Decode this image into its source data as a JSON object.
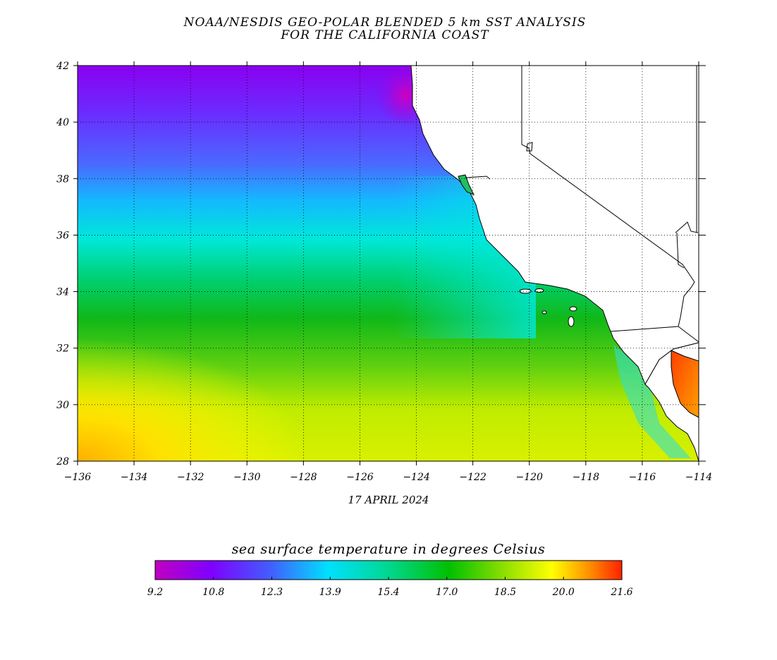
{
  "title_line1": "NOAA/NESDIS GEO-POLAR BLENDED 5 km SST ANALYSIS",
  "title_line2": "FOR THE CALIFORNIA COAST",
  "date": "17 APRIL 2024",
  "map": {
    "lon_range": [
      -136,
      -114
    ],
    "lat_range": [
      28,
      42
    ],
    "lon_ticks": [
      "-136",
      "-134",
      "-132",
      "-130",
      "-128",
      "-126",
      "-124",
      "-122",
      "-120",
      "-118",
      "-116",
      "-114"
    ],
    "lat_ticks": [
      "42",
      "40",
      "38",
      "36",
      "34",
      "32",
      "30",
      "28"
    ],
    "grid": "dotted",
    "land_color": "#ffffff",
    "coastline_color": "#000000"
  },
  "colorbar": {
    "label": "sea surface temperature in degrees Celsius",
    "tick_labels": [
      "9.2",
      "10.8",
      "12.3",
      "13.9",
      "15.4",
      "17.0",
      "18.5",
      "20.0",
      "21.6"
    ],
    "range": [
      9.2,
      21.6
    ],
    "colors": [
      "#c000c0",
      "#8000ff",
      "#4060ff",
      "#00e0ff",
      "#00e0a0",
      "#00c000",
      "#80e000",
      "#ffff00",
      "#ff8000",
      "#ff2000"
    ]
  }
}
